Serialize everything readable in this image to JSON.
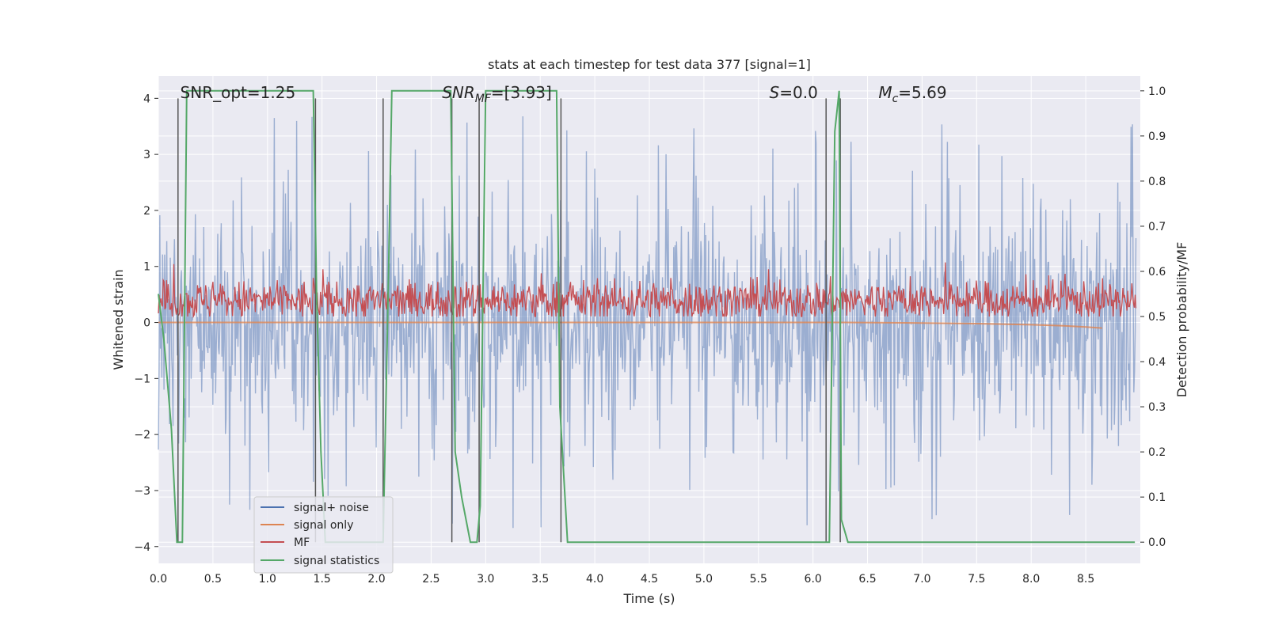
{
  "chart_data": {
    "type": "line",
    "title": "stats at each timestep for test data 377 [signal=1]",
    "xlabel": "Time (s)",
    "ylabel": "Whitened strain",
    "y2label": "Detection probability/MF",
    "xlim": [
      0.0,
      9.0
    ],
    "ylim": [
      -4.3,
      4.4
    ],
    "y2lim": [
      -0.047,
      1.033
    ],
    "xticks": [
      0.0,
      0.5,
      1.0,
      1.5,
      2.0,
      2.5,
      3.0,
      3.5,
      4.0,
      4.5,
      5.0,
      5.5,
      6.0,
      6.5,
      7.0,
      7.5,
      8.0,
      8.5
    ],
    "xtick_labels": [
      "0.0",
      "0.5",
      "1.0",
      "1.5",
      "2.0",
      "2.5",
      "3.0",
      "3.5",
      "4.0",
      "4.5",
      "5.0",
      "5.5",
      "6.0",
      "6.5",
      "7.0",
      "7.5",
      "8.0",
      "8.5"
    ],
    "yticks": [
      -4,
      -3,
      -2,
      -1,
      0,
      1,
      2,
      3,
      4
    ],
    "ytick_labels": [
      "−4",
      "−3",
      "−2",
      "−1",
      "0",
      "1",
      "2",
      "3",
      "4"
    ],
    "y2ticks": [
      0.0,
      0.1,
      0.2,
      0.3,
      0.4,
      0.5,
      0.6,
      0.7,
      0.8,
      0.9,
      1.0
    ],
    "y2tick_labels": [
      "0.0",
      "0.1",
      "0.2",
      "0.3",
      "0.4",
      "0.5",
      "0.6",
      "0.7",
      "0.8",
      "0.9",
      "1.0"
    ],
    "grid": true,
    "legend_position": "lower-left",
    "annotations": [
      {
        "text": "SNR_opt=1.25",
        "x": 0.2
      },
      {
        "text": "SNR_MF=[3.93]",
        "x": 2.6
      },
      {
        "text": "S=0.0",
        "x": 5.6
      },
      {
        "text": "M_c=5.69",
        "x": 6.6
      }
    ],
    "segment_boundaries": [
      0.18,
      1.44,
      2.06,
      2.69,
      2.94,
      3.69,
      6.12,
      6.25
    ],
    "series": [
      {
        "name": "signal+ noise",
        "axis": "left",
        "color": "#4c72b0",
        "description": "whitened strain, noise roughly in [-3.9, 3.7]",
        "amplitude_range": [
          -3.9,
          3.7
        ]
      },
      {
        "name": "signal only",
        "axis": "left",
        "color": "#dd8452",
        "description": "chirp visible near 7.5-8.6 s, small amplitude",
        "x": [
          0.0,
          6.3,
          7.0,
          7.5,
          8.0,
          8.3,
          8.5,
          8.65
        ],
        "y": [
          0.0,
          0.0,
          -0.01,
          -0.02,
          -0.04,
          -0.06,
          -0.08,
          -0.1
        ]
      },
      {
        "name": "MF",
        "axis": "right",
        "color": "#c44e52",
        "description": "matched filter output fluctuating roughly 0.50-0.62",
        "range": [
          0.5,
          0.62
        ]
      },
      {
        "name": "signal statistics",
        "axis": "right",
        "color": "#55a868",
        "x": [
          0.0,
          0.05,
          0.12,
          0.17,
          0.22,
          0.26,
          0.3,
          1.42,
          1.45,
          1.49,
          1.53,
          1.95,
          2.06,
          2.11,
          2.14,
          2.18,
          2.68,
          2.72,
          2.78,
          2.86,
          2.92,
          2.95,
          3.0,
          3.04,
          3.65,
          3.68,
          3.75,
          6.1,
          6.15,
          6.2,
          6.24,
          6.26,
          6.32,
          8.95
        ],
        "y": [
          0.55,
          0.45,
          0.25,
          0.0,
          0.0,
          1.0,
          1.0,
          1.0,
          0.55,
          0.2,
          0.0,
          0.0,
          0.0,
          0.6,
          1.0,
          1.0,
          1.0,
          0.2,
          0.1,
          0.0,
          0.0,
          0.08,
          1.0,
          1.0,
          1.0,
          0.3,
          0.0,
          0.0,
          0.0,
          0.91,
          1.0,
          0.05,
          0.0,
          0.0
        ]
      }
    ]
  },
  "legend": {
    "items": [
      {
        "label": "signal+ noise",
        "color": "#4c72b0"
      },
      {
        "label": "signal only",
        "color": "#dd8452"
      },
      {
        "label": "MF",
        "color": "#c44e52"
      },
      {
        "label": "signal statistics",
        "color": "#55a868"
      }
    ]
  },
  "colors": {
    "plot_background": "#eaeaf2",
    "grid": "#ffffff",
    "boundary_line": "#555555"
  }
}
